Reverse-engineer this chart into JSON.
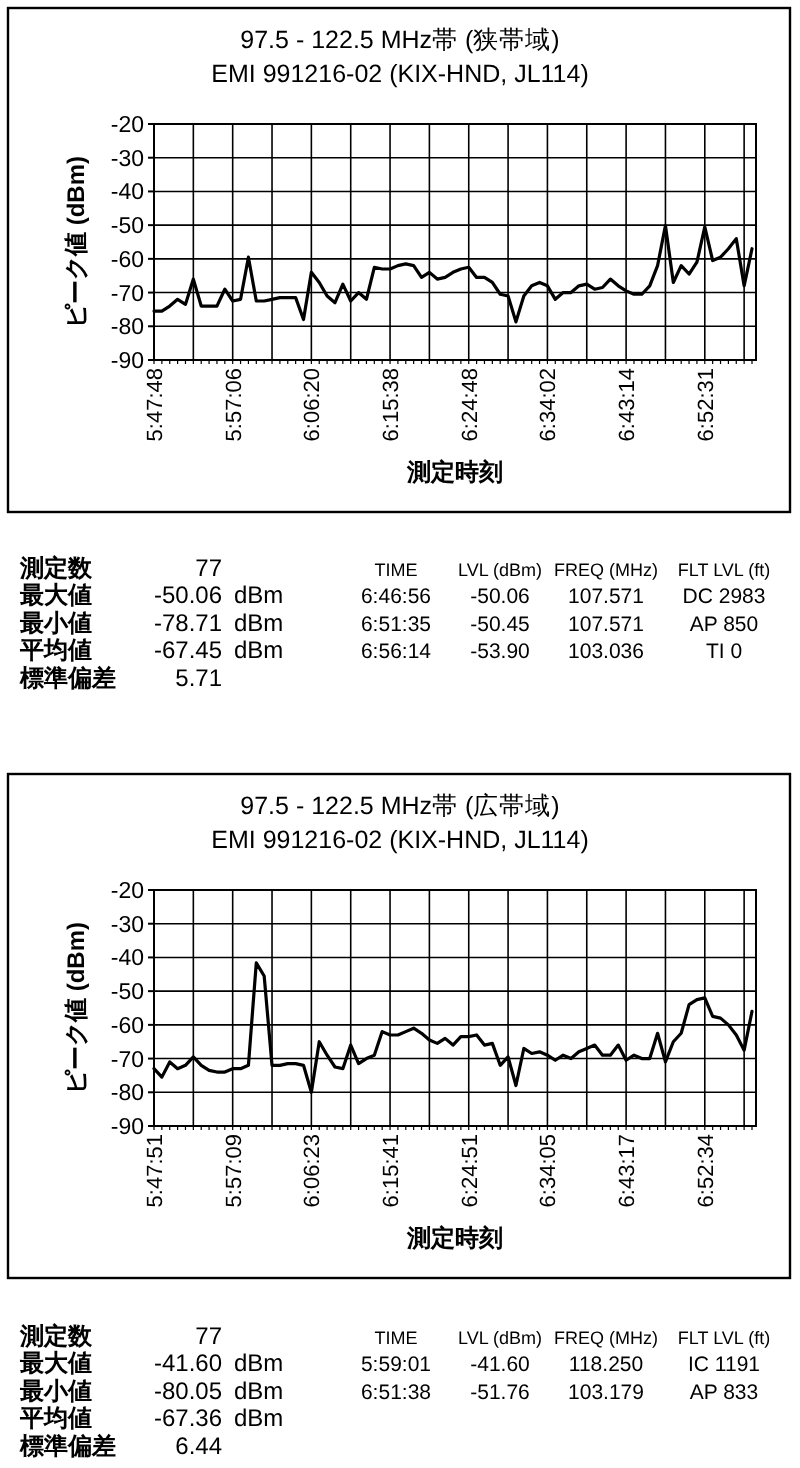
{
  "chart_data": [
    {
      "type": "line",
      "title": "97.5 - 122.5 MHz帯 (狭帯域)",
      "subtitle": "EMI 991216-02 (KIX-HND, JL114)",
      "xlabel": "測定時刻",
      "ylabel": "ピーク値 (dBm)",
      "color": "#000000",
      "grid": true,
      "ylim": [
        -90,
        -20
      ],
      "yticks": [
        -90,
        -80,
        -70,
        -60,
        -50,
        -40,
        -30,
        -20
      ],
      "categories": [
        "5:47:48",
        null,
        null,
        null,
        null,
        null,
        null,
        null,
        null,
        null,
        "5:57:06",
        null,
        null,
        null,
        null,
        null,
        null,
        null,
        null,
        null,
        "6:06:20",
        null,
        null,
        null,
        null,
        null,
        null,
        null,
        null,
        null,
        "6:15:38",
        null,
        null,
        null,
        null,
        null,
        null,
        null,
        null,
        null,
        "6:24:48",
        null,
        null,
        null,
        null,
        null,
        null,
        null,
        null,
        null,
        "6:34:02",
        null,
        null,
        null,
        null,
        null,
        null,
        null,
        null,
        null,
        "6:43:14",
        null,
        null,
        null,
        null,
        null,
        null,
        null,
        null,
        null,
        "6:52:31",
        null,
        null,
        null,
        null,
        null,
        null
      ],
      "values": [
        -75.5,
        -75.5,
        -74,
        -72,
        -73.5,
        -66,
        -74,
        -74,
        -74,
        -69,
        -72.5,
        -72,
        -59.5,
        -72.5,
        -72.5,
        -72,
        -71.5,
        -71.5,
        -71.5,
        -78,
        -64,
        -67,
        -71,
        -73,
        -67.5,
        -72.5,
        -70,
        -72,
        -62.5,
        -63,
        -63,
        -62,
        -61.5,
        -62,
        -65.5,
        -64,
        -66,
        -65.5,
        -64,
        -63,
        -62.5,
        -65.5,
        -65.5,
        -67,
        -70.5,
        -71,
        -78.7,
        -71,
        -68,
        -67,
        -68,
        -72,
        -70,
        -70,
        -68,
        -67.5,
        -69,
        -68.5,
        -66,
        -68,
        -69.5,
        -70.5,
        -70.5,
        -68,
        -62,
        -50.1,
        -67,
        -62,
        -64.5,
        -61,
        -50.5,
        -60.5,
        -59.5,
        -57,
        -54,
        -68,
        -57
      ]
    },
    {
      "type": "other",
      "annotations": [
        "測定数",
        "77",
        "TIME",
        "LVL (dBm)",
        "FREQ (MHz)",
        "FLT LVL (ft)",
        "最大値",
        "-50.06",
        "dBm",
        "6:46:56",
        "-50.06",
        "107.571",
        "DC 2983",
        "最小値",
        "-78.71",
        "dBm",
        "6:51:35",
        "-50.45",
        "107.571",
        "AP 850",
        "平均値",
        "-67.45",
        "dBm",
        "6:56:14",
        "-53.90",
        "103.036",
        "TI 0",
        "標準偏差",
        "5.71"
      ]
    },
    {
      "type": "line",
      "title": "97.5 - 122.5 MHz帯 (広帯域)",
      "subtitle": "EMI 991216-02 (KIX-HND, JL114)",
      "xlabel": "測定時刻",
      "ylabel": "ピーク値 (dBm)",
      "color": "#000000",
      "grid": true,
      "ylim": [
        -90,
        -20
      ],
      "yticks": [
        -90,
        -80,
        -70,
        -60,
        -50,
        -40,
        -30,
        -20
      ],
      "categories": [
        "5:47:51",
        null,
        null,
        null,
        null,
        null,
        null,
        null,
        null,
        null,
        "5:57:09",
        null,
        null,
        null,
        null,
        null,
        null,
        null,
        null,
        null,
        "6:06:23",
        null,
        null,
        null,
        null,
        null,
        null,
        null,
        null,
        null,
        "6:15:41",
        null,
        null,
        null,
        null,
        null,
        null,
        null,
        null,
        null,
        "6:24:51",
        null,
        null,
        null,
        null,
        null,
        null,
        null,
        null,
        null,
        "6:34:05",
        null,
        null,
        null,
        null,
        null,
        null,
        null,
        null,
        null,
        "6:43:17",
        null,
        null,
        null,
        null,
        null,
        null,
        null,
        null,
        null,
        "6:52:34",
        null,
        null,
        null,
        null,
        null,
        null
      ],
      "values": [
        -73,
        -75.5,
        -71,
        -73,
        -72,
        -69.5,
        -72,
        -73.5,
        -74,
        -74,
        -73,
        -73,
        -72,
        -41.6,
        -45.5,
        -72,
        -72,
        -71.5,
        -71.5,
        -72,
        -80,
        -65,
        -69,
        -72.5,
        -73,
        -66,
        -71.5,
        -70,
        -69,
        -62,
        -63,
        -63,
        -62,
        -61,
        -62.5,
        -64.5,
        -65.5,
        -64,
        -66,
        -63.5,
        -63.5,
        -63,
        -66,
        -65.5,
        -72,
        -69.5,
        -78,
        -67,
        -68.5,
        -68,
        -69,
        -70.5,
        -69,
        -70,
        -68,
        -67,
        -66,
        -69,
        -69,
        -66,
        -70.5,
        -69,
        -70,
        -70,
        -62.5,
        -71,
        -65,
        -62.5,
        -54,
        -52.5,
        -52,
        -57.5,
        -58,
        -60,
        -63,
        -67.5,
        -56
      ]
    },
    {
      "type": "other",
      "annotations": [
        "測定数",
        "77",
        "TIME",
        "LVL (dBm)",
        "FREQ (MHz)",
        "FLT LVL (ft)",
        "最大値",
        "-41.60",
        "dBm",
        "5:59:01",
        "-41.60",
        "118.250",
        "IC 1191",
        "最小値",
        "-80.05",
        "dBm",
        "6:51:38",
        "-51.76",
        "103.179",
        "AP 833",
        "平均値",
        "-67.36",
        "dBm",
        "標準偏差",
        "6.44"
      ]
    }
  ]
}
